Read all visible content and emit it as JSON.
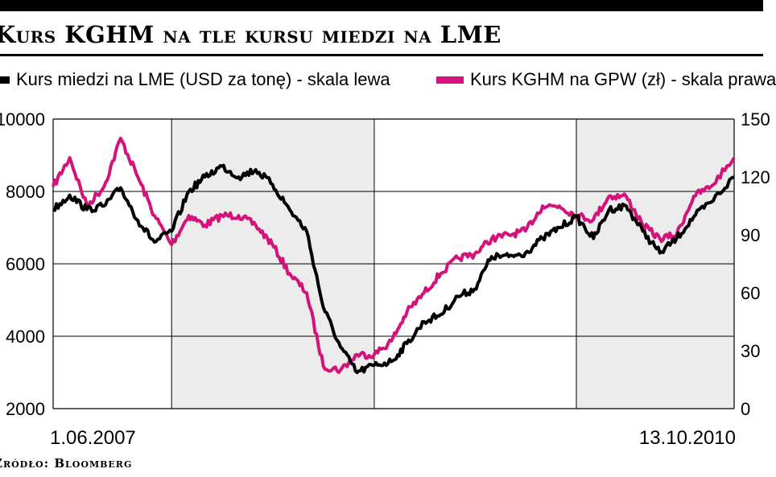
{
  "header": {
    "title": "Kurs KGHM na tle kursu miedzi na LME"
  },
  "legend": {
    "copper_label": "Kurs miedzi na LME (USD za tonę) - skala lewa",
    "kghm_label": "Kurs KGHM na GPW (zł) - skala prawa"
  },
  "footer": {
    "source": "Źródło: Bloomberg"
  },
  "colors": {
    "copper": "#000000",
    "kghm": "#d4137a",
    "shade": "#ececec",
    "grid": "#000000"
  },
  "chart_data": {
    "type": "line",
    "title": "Kurs KGHM na tle kursu miedzi na LME",
    "x_start_label": "1.06.2007",
    "x_end_label": "13.10.2010",
    "x_range": [
      "2007-06-01",
      "2010-10-13"
    ],
    "shaded_periods": [
      [
        "2008-01-01",
        "2008-12-31"
      ],
      [
        "2010-01-01",
        "2010-10-13"
      ]
    ],
    "y_left": {
      "ticks": [
        "10000",
        "8000",
        "6000",
        "4000",
        "2000"
      ],
      "range": [
        2000,
        10000
      ]
    },
    "y_right": {
      "ticks": [
        "150",
        "120",
        "90",
        "60",
        "30",
        "0"
      ],
      "range": [
        0,
        150
      ]
    },
    "grid": true,
    "legend_position": "top",
    "series": [
      {
        "name": "Kurs miedzi na LME (USD za tonę) - skala lewa",
        "axis": "left",
        "x": [
          "2007-06-01",
          "2007-07-01",
          "2007-08-01",
          "2007-09-01",
          "2007-10-01",
          "2007-11-01",
          "2007-12-01",
          "2008-01-01",
          "2008-02-01",
          "2008-03-01",
          "2008-04-01",
          "2008-05-01",
          "2008-06-01",
          "2008-07-01",
          "2008-08-01",
          "2008-09-01",
          "2008-10-01",
          "2008-11-01",
          "2008-12-01",
          "2009-01-01",
          "2009-02-01",
          "2009-03-01",
          "2009-04-01",
          "2009-05-01",
          "2009-06-01",
          "2009-07-01",
          "2009-08-01",
          "2009-09-01",
          "2009-10-01",
          "2009-11-01",
          "2009-12-01",
          "2010-01-01",
          "2010-02-01",
          "2010-03-01",
          "2010-04-01",
          "2010-05-01",
          "2010-06-01",
          "2010-07-01",
          "2010-08-01",
          "2010-09-01",
          "2010-10-13"
        ],
        "values": [
          7500,
          7900,
          7500,
          7600,
          8100,
          7200,
          6600,
          6900,
          8000,
          8400,
          8700,
          8400,
          8600,
          8200,
          7500,
          6900,
          4800,
          3700,
          3000,
          3200,
          3300,
          3800,
          4400,
          4600,
          5100,
          5300,
          6200,
          6200,
          6300,
          6700,
          7000,
          7300,
          6700,
          7500,
          7600,
          6900,
          6300,
          6700,
          7300,
          7700,
          8400
        ]
      },
      {
        "name": "Kurs KGHM na GPW (zł) - skala prawa",
        "axis": "right",
        "x": [
          "2007-06-01",
          "2007-07-01",
          "2007-08-01",
          "2007-09-01",
          "2007-10-01",
          "2007-11-01",
          "2007-12-01",
          "2008-01-01",
          "2008-02-01",
          "2008-03-01",
          "2008-04-01",
          "2008-05-01",
          "2008-06-01",
          "2008-07-01",
          "2008-08-01",
          "2008-09-01",
          "2008-10-01",
          "2008-11-01",
          "2008-12-01",
          "2009-01-01",
          "2009-02-01",
          "2009-03-01",
          "2009-04-01",
          "2009-05-01",
          "2009-06-01",
          "2009-07-01",
          "2009-08-01",
          "2009-09-01",
          "2009-10-01",
          "2009-11-01",
          "2009-12-01",
          "2010-01-01",
          "2010-02-01",
          "2010-03-01",
          "2010-04-01",
          "2010-05-01",
          "2010-06-01",
          "2010-07-01",
          "2010-08-01",
          "2010-09-01",
          "2010-10-13"
        ],
        "values": [
          115,
          130,
          105,
          115,
          140,
          120,
          100,
          85,
          100,
          95,
          100,
          100,
          95,
          85,
          70,
          60,
          22,
          20,
          28,
          28,
          35,
          50,
          60,
          70,
          78,
          80,
          88,
          90,
          92,
          105,
          105,
          100,
          98,
          110,
          110,
          95,
          88,
          90,
          110,
          115,
          130
        ]
      }
    ]
  }
}
